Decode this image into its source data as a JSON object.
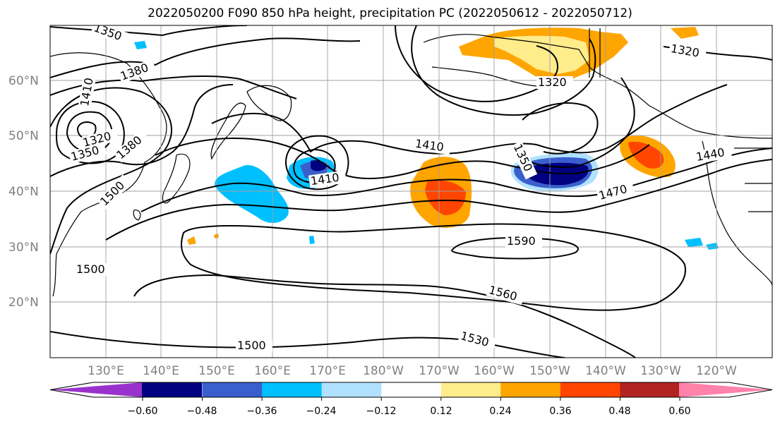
{
  "title": "2022050200 F090 850 hPa height, precipitation PC (2022050612 - 2022050712)",
  "lat_labels": [
    "60°N",
    "50°N",
    "40°N",
    "30°N",
    "20°N"
  ],
  "lon_labels": [
    "130°E",
    "140°E",
    "150°E",
    "160°E",
    "170°E",
    "180°W",
    "170°W",
    "160°W",
    "150°W",
    "140°W",
    "130°W",
    "120°W"
  ],
  "contour_labels": [
    "1350",
    "1380",
    "1410",
    "1320",
    "1380",
    "1350",
    "1500",
    "1410",
    "1410",
    "1350",
    "1470",
    "1440",
    "1320",
    "1320",
    "1590",
    "1500",
    "1560",
    "1530",
    "1500"
  ],
  "colorbar": {
    "ticks": [
      "−0.60",
      "−0.48",
      "−0.36",
      "−0.24",
      "−0.12",
      "0.12",
      "0.24",
      "0.36",
      "0.48",
      "0.60"
    ],
    "colors": [
      "#9932cc",
      "#000080",
      "#3a5fcd",
      "#00bfff",
      "#b0e2ff",
      "#ffffff",
      "#ffec8b",
      "#ffa500",
      "#ff4500",
      "#b22222",
      "#ff82ab"
    ]
  },
  "colors": {
    "land_outline": "#000000",
    "grid": "#a0a0a0",
    "axis_text": "#808080"
  }
}
